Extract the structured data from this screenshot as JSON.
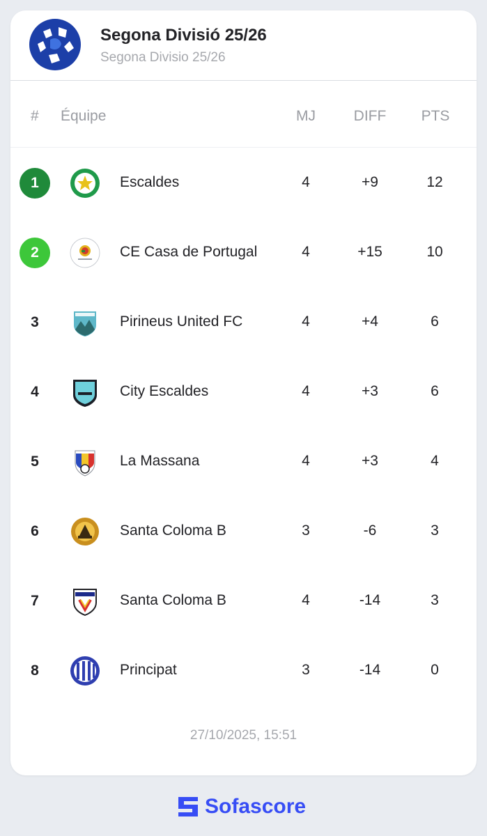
{
  "league": {
    "title": "Segona Divisió 25/26",
    "subtitle": "Segona Divisio 25/26"
  },
  "columns": {
    "rank": "#",
    "team": "Équipe",
    "mj": "MJ",
    "diff": "DIFF",
    "pts": "PTS"
  },
  "standings": [
    {
      "rank": "1",
      "team": "Escaldes",
      "mj": "4",
      "diff": "+9",
      "pts": "12",
      "rank_bg": "#1f8a3a",
      "rank_fg": "#ffffff",
      "logo": "escaldes-crest-icon"
    },
    {
      "rank": "2",
      "team": "CE Casa de Portugal",
      "mj": "4",
      "diff": "+15",
      "pts": "10",
      "rank_bg": "#3dc73a",
      "rank_fg": "#ffffff",
      "logo": "casa-de-portugal-crest-icon"
    },
    {
      "rank": "3",
      "team": "Pirineus United FC",
      "mj": "4",
      "diff": "+4",
      "pts": "6",
      "rank_bg": "transparent",
      "rank_fg": "#222226",
      "logo": "pirineus-united-crest-icon"
    },
    {
      "rank": "4",
      "team": "City Escaldes",
      "mj": "4",
      "diff": "+3",
      "pts": "6",
      "rank_bg": "transparent",
      "rank_fg": "#222226",
      "logo": "city-escaldes-crest-icon"
    },
    {
      "rank": "5",
      "team": "La Massana",
      "mj": "4",
      "diff": "+3",
      "pts": "4",
      "rank_bg": "transparent",
      "rank_fg": "#222226",
      "logo": "la-massana-crest-icon"
    },
    {
      "rank": "6",
      "team": "Santa Coloma B",
      "mj": "3",
      "diff": "-6",
      "pts": "3",
      "rank_bg": "transparent",
      "rank_fg": "#222226",
      "logo": "santa-coloma-b-gold-crest-icon"
    },
    {
      "rank": "7",
      "team": "Santa Coloma B",
      "mj": "4",
      "diff": "-14",
      "pts": "3",
      "rank_bg": "transparent",
      "rank_fg": "#222226",
      "logo": "fc-santa-coloma-crest-icon"
    },
    {
      "rank": "8",
      "team": "Principat",
      "mj": "3",
      "diff": "-14",
      "pts": "0",
      "rank_bg": "transparent",
      "rank_fg": "#222226",
      "logo": "principat-crest-icon"
    }
  ],
  "updated": "27/10/2025, 15:51",
  "brand": {
    "name": "Sofascore",
    "color": "#374df5"
  }
}
